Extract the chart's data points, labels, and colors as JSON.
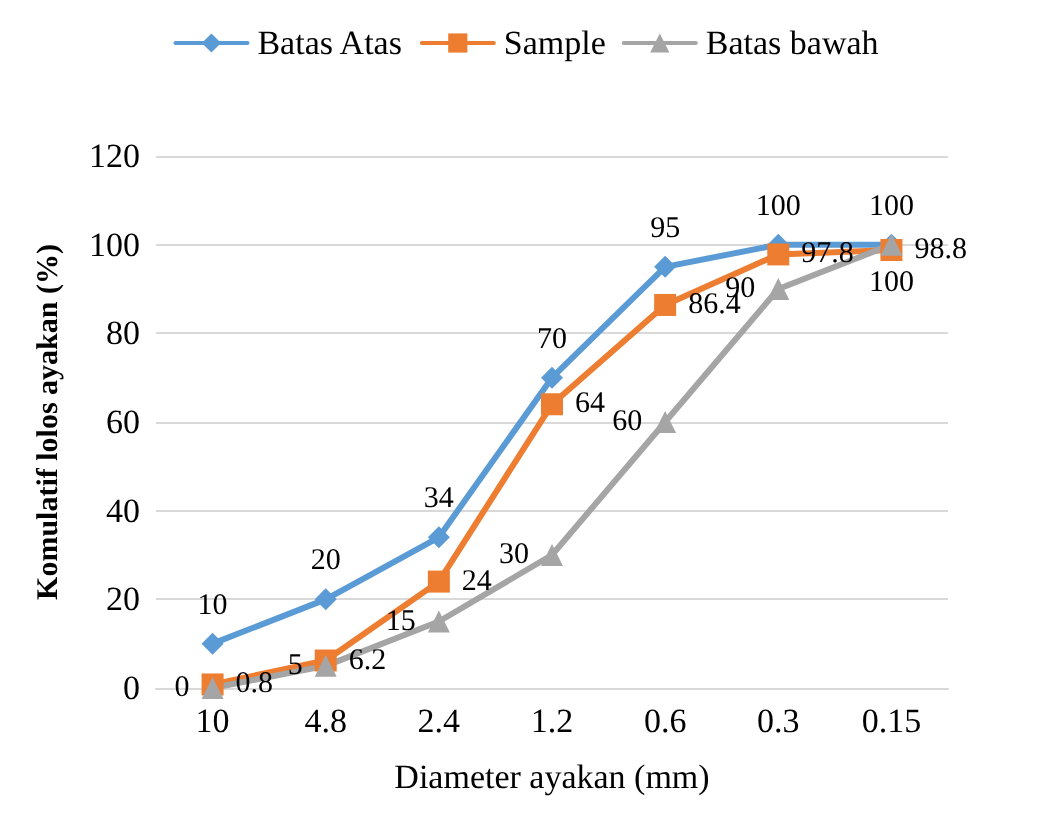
{
  "chart_data": {
    "type": "line",
    "xlabel": "Diameter ayakan (mm)",
    "ylabel": "Komulatif lolos ayakan (%)",
    "categories": [
      "10",
      "4.8",
      "2.4",
      "1.2",
      "0.6",
      "0.3",
      "0.15"
    ],
    "ylim": [
      0,
      120
    ],
    "yticks": [
      0,
      20,
      40,
      60,
      80,
      100,
      120
    ],
    "grid": "y",
    "legend": "top",
    "data_labels": true,
    "series": [
      {
        "name": "Batas Atas",
        "color": "#5b9bd5",
        "marker": "diamond",
        "values": [
          10,
          20,
          34,
          70,
          95,
          100,
          100
        ]
      },
      {
        "name": "Sample",
        "color": "#ed7d31",
        "marker": "square",
        "values": [
          0.8,
          6.2,
          24,
          64,
          86.4,
          97.8,
          98.8
        ]
      },
      {
        "name": "Batas bawah",
        "color": "#a5a5a5",
        "marker": "triangle",
        "values": [
          0,
          5,
          15,
          30,
          60,
          90,
          100
        ]
      }
    ]
  }
}
